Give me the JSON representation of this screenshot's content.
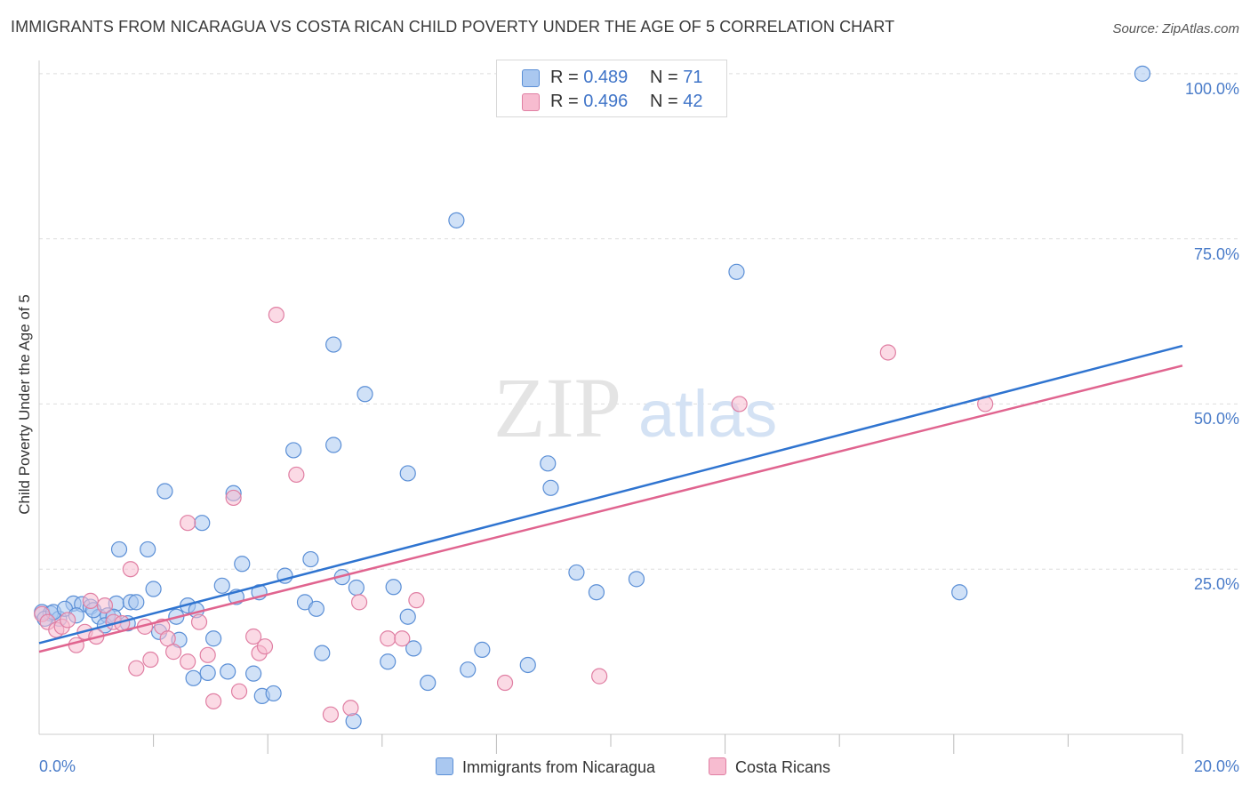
{
  "chart_data": {
    "type": "scatter",
    "title": "IMMIGRANTS FROM NICARAGUA VS COSTA RICAN CHILD POVERTY UNDER THE AGE OF 5 CORRELATION CHART",
    "source": "Source: ZipAtlas.com",
    "xlabel": "",
    "ylabel": "Child Poverty Under the Age of 5",
    "xlim": [
      0,
      20
    ],
    "ylim": [
      0,
      102
    ],
    "x_tick_labels": [
      "0.0%",
      "20.0%"
    ],
    "y_ticks": [
      {
        "value": 25,
        "label": "25.0%"
      },
      {
        "value": 50,
        "label": "50.0%"
      },
      {
        "value": 75,
        "label": "75.0%"
      },
      {
        "value": 100,
        "label": "100.0%"
      }
    ],
    "watermark": {
      "zip": "ZIP",
      "atlas": "atlas"
    },
    "colors": {
      "blue_fill": "#aac8f0",
      "blue_stroke": "#5b8fd6",
      "blue_line": "#2f74d0",
      "pink_fill": "#f7bcd0",
      "pink_stroke": "#e07fa3",
      "pink_line": "#e0648f",
      "grid": "#dddddd",
      "tick_text": "#4a7cc9"
    },
    "legend": {
      "series1": {
        "r_label": "R =",
        "r_value": "0.489",
        "n_label": "N =",
        "n_value": "71"
      },
      "series2": {
        "r_label": "R =",
        "r_value": "0.496",
        "n_label": "N =",
        "n_value": "42"
      }
    },
    "series": [
      {
        "name": "Immigrants from Nicaragua",
        "trend": {
          "start": [
            0,
            13.8
          ],
          "end": [
            20,
            58.8
          ]
        },
        "points": [
          [
            0.05,
            18.5
          ],
          [
            0.2,
            18.3
          ],
          [
            0.35,
            17.5
          ],
          [
            0.6,
            19.8
          ],
          [
            0.75,
            19.7
          ],
          [
            0.9,
            19.3
          ],
          [
            1.05,
            17.8
          ],
          [
            1.2,
            18.0
          ],
          [
            1.35,
            19.8
          ],
          [
            1.4,
            28.0
          ],
          [
            1.55,
            16.8
          ],
          [
            1.6,
            20.0
          ],
          [
            1.7,
            20.0
          ],
          [
            1.9,
            28.0
          ],
          [
            2.0,
            22.0
          ],
          [
            2.1,
            15.5
          ],
          [
            2.2,
            36.8
          ],
          [
            2.4,
            17.8
          ],
          [
            2.45,
            14.3
          ],
          [
            2.6,
            19.5
          ],
          [
            2.7,
            8.5
          ],
          [
            2.75,
            18.8
          ],
          [
            2.85,
            32.0
          ],
          [
            2.95,
            9.3
          ],
          [
            3.05,
            14.5
          ],
          [
            3.2,
            22.5
          ],
          [
            3.3,
            9.5
          ],
          [
            3.4,
            36.5
          ],
          [
            3.45,
            20.8
          ],
          [
            3.55,
            25.8
          ],
          [
            3.75,
            9.2
          ],
          [
            3.85,
            21.5
          ],
          [
            3.9,
            5.8
          ],
          [
            4.1,
            6.2
          ],
          [
            4.3,
            24.0
          ],
          [
            4.45,
            43.0
          ],
          [
            4.65,
            20.0
          ],
          [
            4.75,
            26.5
          ],
          [
            4.85,
            19.0
          ],
          [
            4.95,
            12.3
          ],
          [
            5.15,
            43.8
          ],
          [
            5.15,
            59.0
          ],
          [
            5.3,
            23.8
          ],
          [
            5.5,
            2.0
          ],
          [
            5.55,
            22.2
          ],
          [
            5.7,
            51.5
          ],
          [
            6.1,
            11.0
          ],
          [
            6.2,
            22.3
          ],
          [
            6.45,
            17.8
          ],
          [
            6.45,
            39.5
          ],
          [
            6.55,
            13.0
          ],
          [
            6.8,
            7.8
          ],
          [
            7.3,
            77.8
          ],
          [
            7.5,
            9.8
          ],
          [
            7.75,
            12.8
          ],
          [
            8.55,
            10.5
          ],
          [
            8.9,
            41.0
          ],
          [
            8.95,
            37.3
          ],
          [
            9.4,
            24.5
          ],
          [
            9.75,
            21.5
          ],
          [
            10.45,
            23.5
          ],
          [
            12.2,
            70.0
          ],
          [
            16.1,
            21.5
          ],
          [
            19.3,
            100.0
          ],
          [
            0.1,
            17.5
          ],
          [
            0.25,
            18.5
          ],
          [
            0.45,
            19.0
          ],
          [
            0.65,
            18.0
          ],
          [
            0.95,
            18.8
          ],
          [
            1.15,
            16.5
          ],
          [
            1.3,
            17.8
          ]
        ]
      },
      {
        "name": "Costa Ricans",
        "trend": {
          "start": [
            0,
            12.5
          ],
          "end": [
            20,
            55.8
          ]
        },
        "points": [
          [
            0.05,
            18.2
          ],
          [
            0.15,
            17.0
          ],
          [
            0.3,
            15.8
          ],
          [
            0.4,
            16.3
          ],
          [
            0.5,
            17.3
          ],
          [
            0.65,
            13.5
          ],
          [
            0.8,
            15.5
          ],
          [
            0.9,
            20.2
          ],
          [
            1.0,
            14.8
          ],
          [
            1.15,
            19.5
          ],
          [
            1.3,
            17.0
          ],
          [
            1.45,
            16.8
          ],
          [
            1.6,
            25.0
          ],
          [
            1.7,
            10.0
          ],
          [
            1.85,
            16.3
          ],
          [
            1.95,
            11.3
          ],
          [
            2.15,
            16.3
          ],
          [
            2.25,
            14.5
          ],
          [
            2.35,
            12.5
          ],
          [
            2.6,
            11.0
          ],
          [
            2.6,
            32.0
          ],
          [
            2.8,
            17.0
          ],
          [
            2.95,
            12.0
          ],
          [
            3.05,
            5.0
          ],
          [
            3.4,
            35.8
          ],
          [
            3.5,
            6.5
          ],
          [
            3.75,
            14.8
          ],
          [
            3.85,
            12.3
          ],
          [
            3.95,
            13.3
          ],
          [
            4.15,
            63.5
          ],
          [
            4.5,
            39.3
          ],
          [
            5.1,
            3.0
          ],
          [
            5.45,
            4.0
          ],
          [
            5.6,
            20.0
          ],
          [
            6.1,
            14.5
          ],
          [
            6.35,
            14.5
          ],
          [
            6.6,
            20.3
          ],
          [
            8.15,
            7.8
          ],
          [
            9.8,
            8.8
          ],
          [
            12.25,
            50.0
          ],
          [
            14.85,
            57.8
          ],
          [
            16.55,
            50.0
          ]
        ]
      }
    ]
  }
}
